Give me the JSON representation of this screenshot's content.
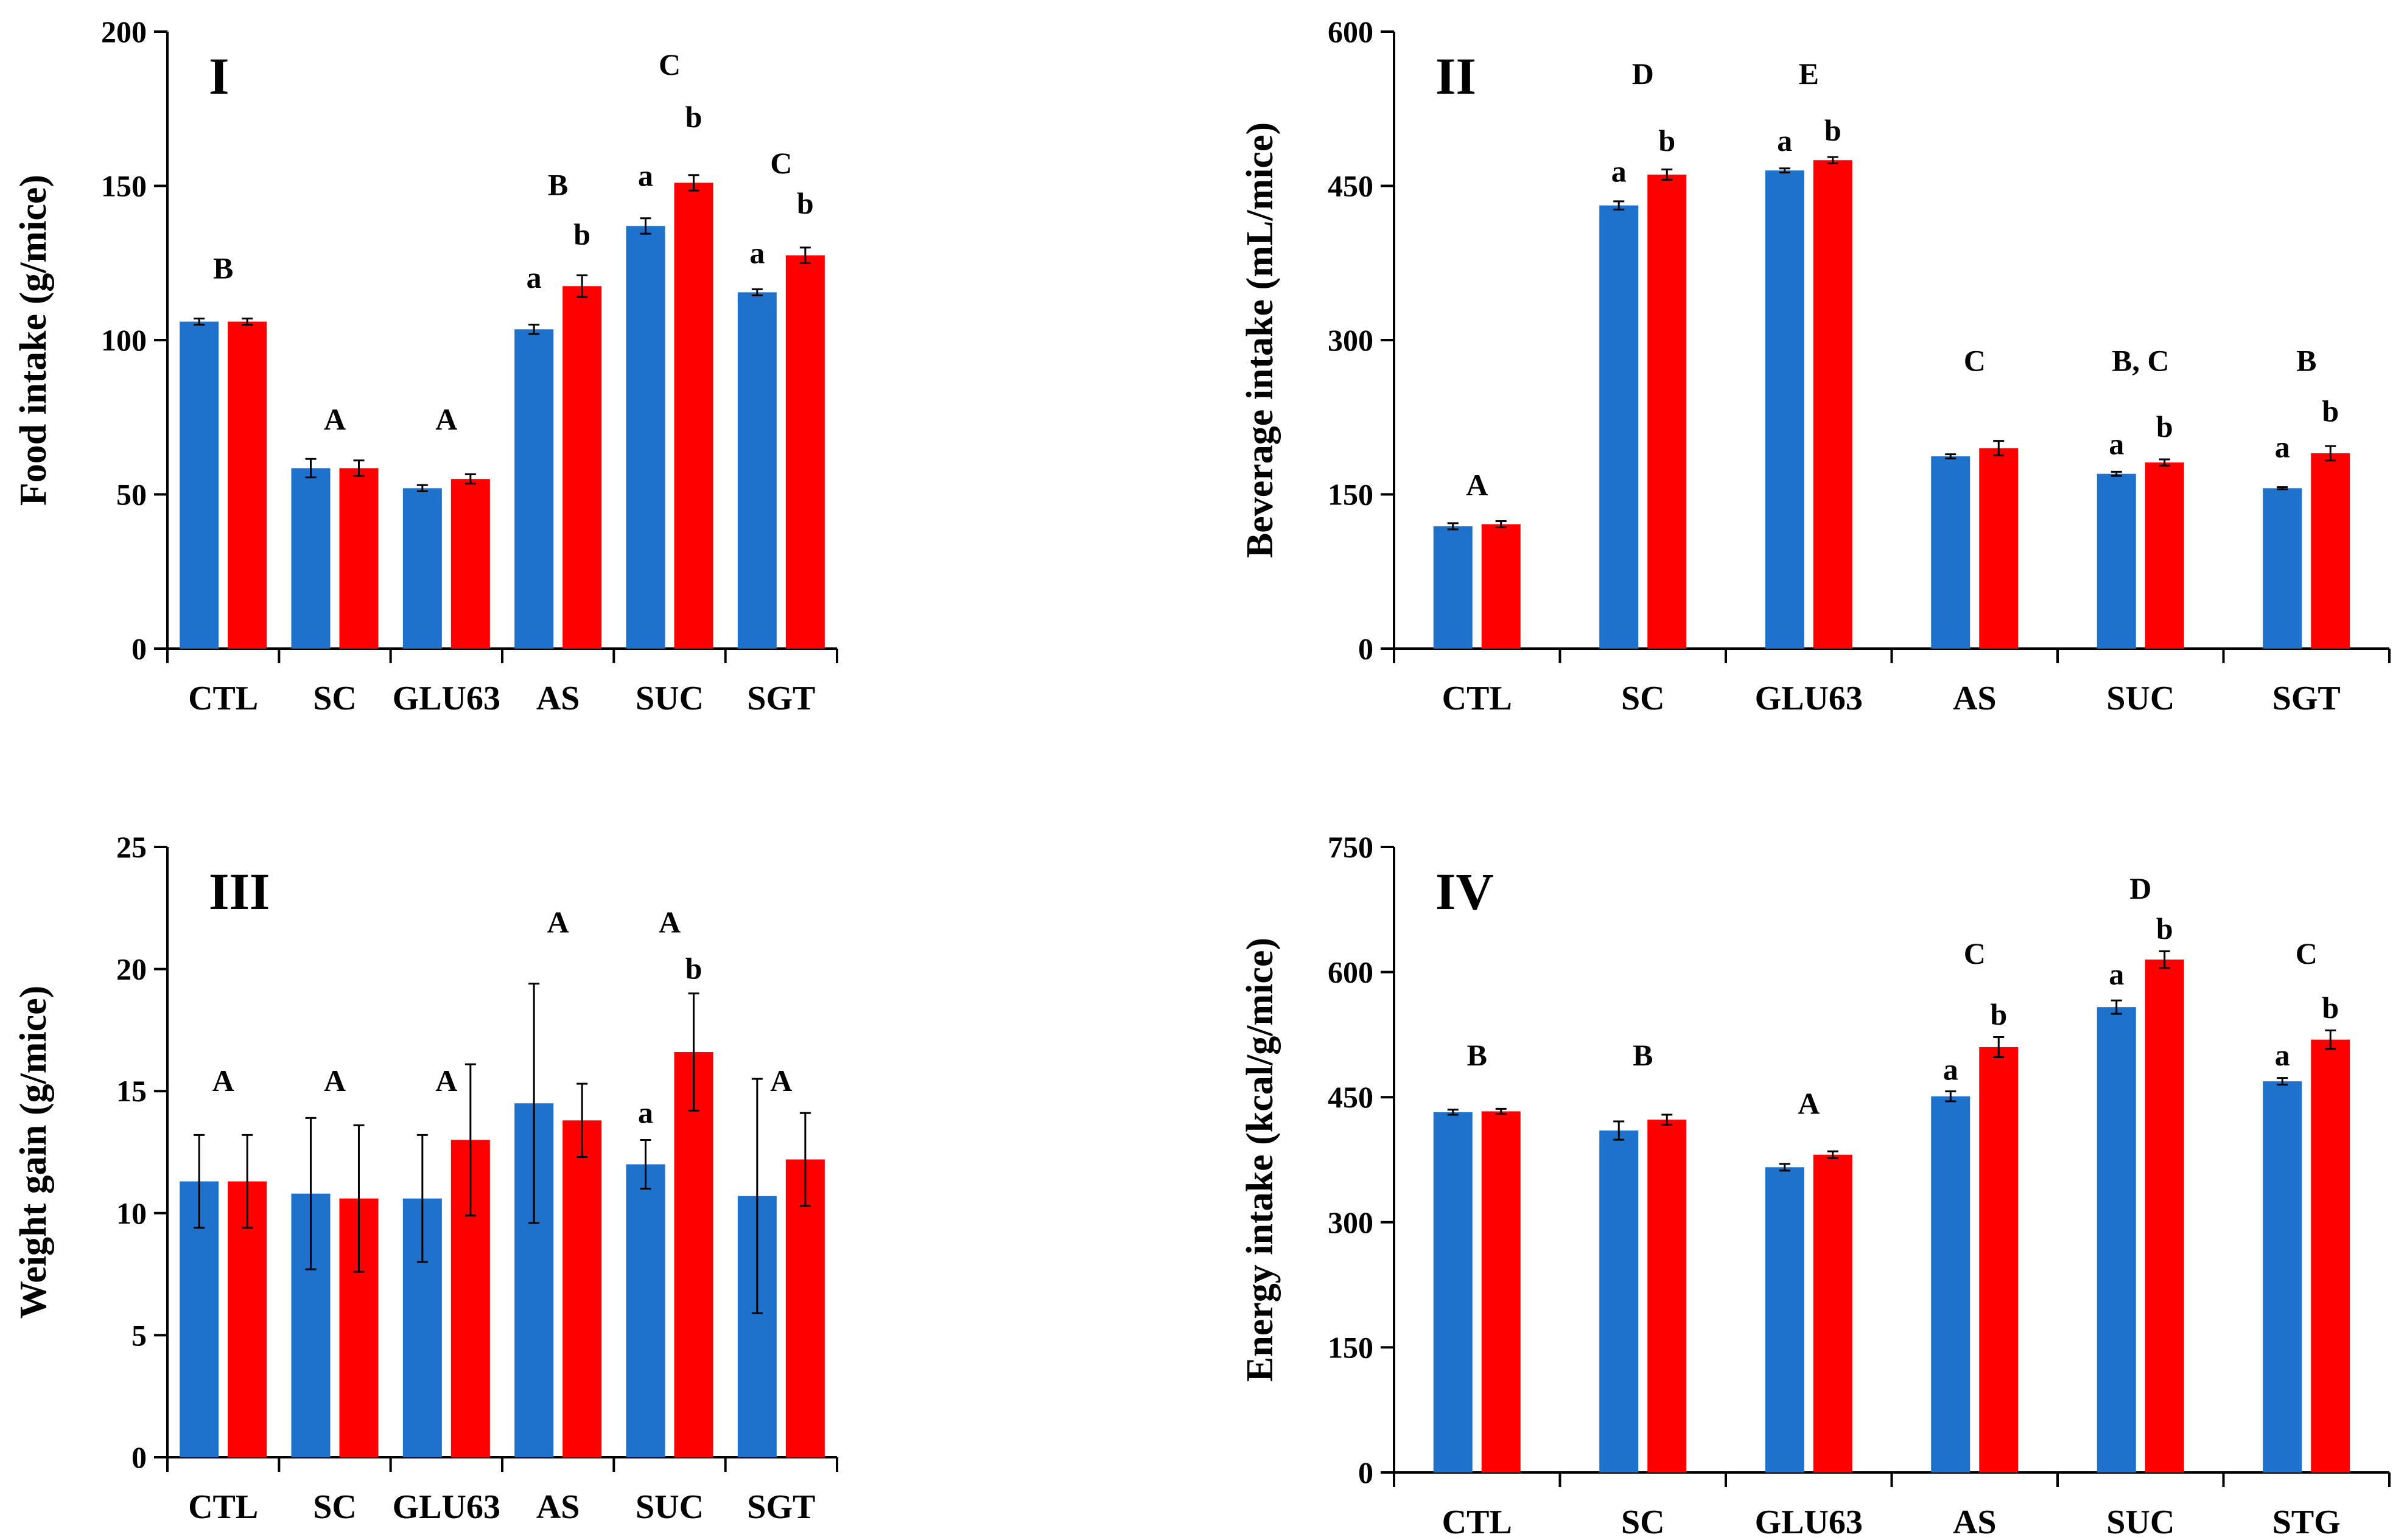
{
  "colors": {
    "series_a": "#1f72cc",
    "series_b": "#ff0000",
    "axis": "#000000"
  },
  "chart_data": [
    {
      "type": "bar",
      "panel": "I",
      "ylabel": "Food intake (g/mice)",
      "ylim": [
        0,
        200
      ],
      "yticks": [
        0,
        50,
        100,
        150,
        200
      ],
      "categories": [
        "CTL",
        "SC",
        "GLU63",
        "AS",
        "SUC",
        "SGT"
      ],
      "series": [
        {
          "name": "series-blue",
          "values": [
            106,
            58.5,
            52,
            103.5,
            137,
            115.5
          ],
          "errors": [
            1,
            3,
            1,
            1.5,
            2.5,
            1
          ]
        },
        {
          "name": "series-red",
          "values": [
            106,
            58.5,
            55,
            117.5,
            151,
            127.5
          ],
          "errors": [
            1,
            2.5,
            1.5,
            3.5,
            2.5,
            2.5
          ]
        }
      ],
      "annotations": [
        {
          "cat": 0,
          "text": "B",
          "value": 120
        },
        {
          "cat": 1,
          "text": "A",
          "value": 71
        },
        {
          "cat": 2,
          "text": "A",
          "value": 71
        },
        {
          "cat": 3,
          "text": "B",
          "value": 147
        },
        {
          "cat": 4,
          "text": "C",
          "value": 186
        },
        {
          "cat": 5,
          "text": "C",
          "value": 154
        },
        {
          "cat": 3,
          "series": 0,
          "text": "a",
          "value": 117
        },
        {
          "cat": 3,
          "series": 1,
          "text": "b",
          "value": 131
        },
        {
          "cat": 4,
          "series": 0,
          "text": "a",
          "value": 150
        },
        {
          "cat": 4,
          "series": 1,
          "text": "b",
          "value": 169
        },
        {
          "cat": 5,
          "series": 0,
          "text": "a",
          "value": 125
        },
        {
          "cat": 5,
          "series": 1,
          "text": "b",
          "value": 141
        }
      ]
    },
    {
      "type": "bar",
      "panel": "II",
      "ylabel": "Beverage intake (mL/mice)",
      "ylim": [
        0,
        600
      ],
      "yticks": [
        0,
        150,
        300,
        450,
        600
      ],
      "categories": [
        "CTL",
        "SC",
        "GLU63",
        "AS",
        "SUC",
        "SGT"
      ],
      "series": [
        {
          "name": "series-blue",
          "values": [
            119,
            431,
            465,
            187,
            170,
            156
          ],
          "errors": [
            3,
            4,
            2,
            2,
            2,
            1
          ]
        },
        {
          "name": "series-red",
          "values": [
            121,
            461,
            475,
            195,
            181,
            190
          ],
          "errors": [
            3,
            5,
            3,
            7,
            3,
            7
          ]
        }
      ],
      "annotations": [
        {
          "cat": 0,
          "text": "A",
          "value": 149
        },
        {
          "cat": 1,
          "text": "D",
          "value": 549
        },
        {
          "cat": 2,
          "text": "E",
          "value": 549
        },
        {
          "cat": 3,
          "text": "C",
          "value": 270
        },
        {
          "cat": 4,
          "text": "B, C",
          "value": 270
        },
        {
          "cat": 5,
          "text": "B",
          "value": 270
        },
        {
          "cat": 1,
          "series": 0,
          "text": "a",
          "value": 454
        },
        {
          "cat": 1,
          "series": 1,
          "text": "b",
          "value": 484
        },
        {
          "cat": 2,
          "series": 0,
          "text": "a",
          "value": 484
        },
        {
          "cat": 2,
          "series": 1,
          "text": "b",
          "value": 494
        },
        {
          "cat": 4,
          "series": 0,
          "text": "a",
          "value": 189
        },
        {
          "cat": 4,
          "series": 1,
          "text": "b",
          "value": 206
        },
        {
          "cat": 5,
          "series": 0,
          "text": "a",
          "value": 186
        },
        {
          "cat": 5,
          "series": 1,
          "text": "b",
          "value": 221
        }
      ]
    },
    {
      "type": "bar",
      "panel": "III",
      "ylabel": "Weight gain (g/mice)",
      "ylim": [
        0,
        25
      ],
      "yticks": [
        0,
        5,
        10,
        15,
        20,
        25
      ],
      "categories": [
        "CTL",
        "SC",
        "GLU63",
        "AS",
        "SUC",
        "SGT"
      ],
      "series": [
        {
          "name": "series-blue",
          "values": [
            11.3,
            10.8,
            10.6,
            14.5,
            12,
            10.7
          ],
          "errors": [
            1.9,
            3.1,
            2.6,
            4.9,
            1,
            4.8
          ]
        },
        {
          "name": "series-red",
          "values": [
            11.3,
            10.6,
            13,
            13.8,
            16.6,
            12.2
          ],
          "errors": [
            1.9,
            3,
            3.1,
            1.5,
            2.4,
            1.9
          ]
        }
      ],
      "annotations": [
        {
          "cat": 0,
          "text": "A",
          "value": 15
        },
        {
          "cat": 1,
          "text": "A",
          "value": 15
        },
        {
          "cat": 2,
          "text": "A",
          "value": 15
        },
        {
          "cat": 3,
          "text": "A",
          "value": 21.5
        },
        {
          "cat": 4,
          "text": "A",
          "value": 21.5
        },
        {
          "cat": 5,
          "text": "A",
          "value": 15
        },
        {
          "cat": 4,
          "series": 0,
          "text": "a",
          "value": 13.7
        },
        {
          "cat": 4,
          "series": 1,
          "text": "b",
          "value": 19.6
        }
      ]
    },
    {
      "type": "bar",
      "panel": "IV",
      "ylabel": "Energy intake (kcal/g/mice)",
      "ylim": [
        0,
        750
      ],
      "yticks": [
        0,
        150,
        300,
        450,
        600,
        750
      ],
      "categories": [
        "CTL",
        "SC",
        "GLU63",
        "AS",
        "SUC",
        "STG"
      ],
      "series": [
        {
          "name": "series-blue",
          "values": [
            432,
            410,
            366,
            451,
            558,
            469
          ],
          "errors": [
            3,
            11,
            4,
            6,
            8,
            4
          ]
        },
        {
          "name": "series-red",
          "values": [
            433,
            423,
            381,
            510,
            615,
            519
          ],
          "errors": [
            3,
            6,
            4,
            12,
            10,
            11
          ]
        }
      ],
      "annotations": [
        {
          "cat": 0,
          "text": "B",
          "value": 488
        },
        {
          "cat": 1,
          "text": "B",
          "value": 488
        },
        {
          "cat": 2,
          "text": "A",
          "value": 430
        },
        {
          "cat": 3,
          "text": "C",
          "value": 610
        },
        {
          "cat": 4,
          "text": "D",
          "value": 688
        },
        {
          "cat": 5,
          "text": "C",
          "value": 610
        },
        {
          "cat": 3,
          "series": 0,
          "text": "a",
          "value": 471
        },
        {
          "cat": 3,
          "series": 1,
          "text": "b",
          "value": 537
        },
        {
          "cat": 4,
          "series": 0,
          "text": "a",
          "value": 585
        },
        {
          "cat": 4,
          "series": 1,
          "text": "b",
          "value": 640
        },
        {
          "cat": 5,
          "series": 0,
          "text": "a",
          "value": 488
        },
        {
          "cat": 5,
          "series": 1,
          "text": "b",
          "value": 545
        }
      ]
    }
  ]
}
